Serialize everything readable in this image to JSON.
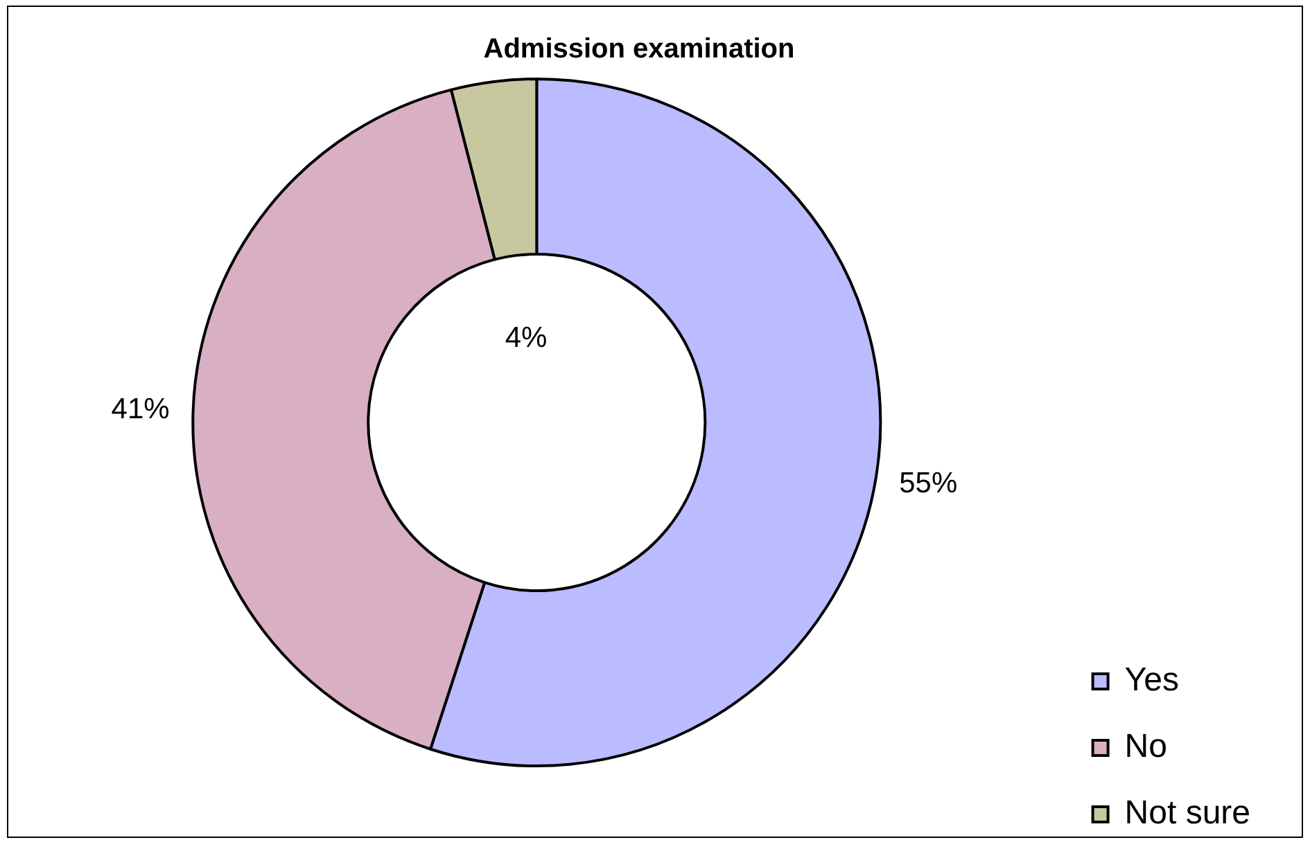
{
  "chart_data": {
    "type": "donut",
    "title": "Admission examination",
    "categories": [
      "Yes",
      "No",
      "Not sure"
    ],
    "values": [
      55,
      41,
      4
    ],
    "colors": [
      "#bbbbff",
      "#d9afc4",
      "#c8c8a0"
    ],
    "value_labels": [
      "55%",
      "41%",
      "4%"
    ],
    "legend": "bottom right"
  }
}
